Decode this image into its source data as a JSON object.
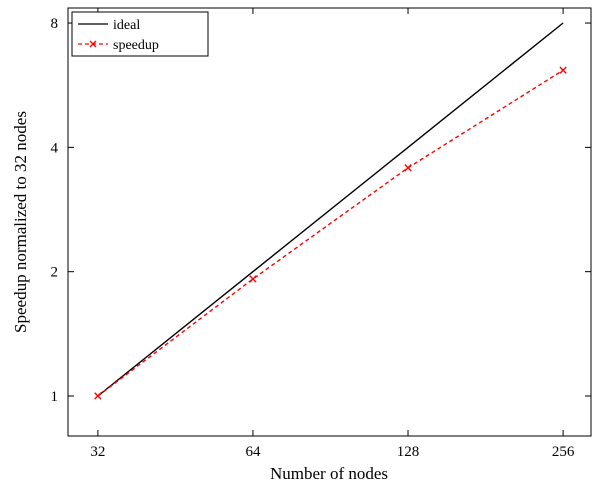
{
  "chart_data": {
    "type": "line",
    "title": "",
    "xlabel": "Number of nodes",
    "ylabel": "Speedup normalized to 32 nodes",
    "x_scale": "log2",
    "y_scale": "log2",
    "xlim": [
      28,
      290
    ],
    "ylim": [
      0.8,
      8.7
    ],
    "x_ticks": [
      32,
      64,
      128,
      256
    ],
    "x_tick_labels": [
      "32",
      "64",
      "128",
      "256"
    ],
    "y_ticks": [
      1,
      2,
      4,
      8
    ],
    "y_tick_labels": [
      "1",
      "2",
      "4",
      "8"
    ],
    "grid": false,
    "legend_position": "top-left",
    "series": [
      {
        "name": "ideal",
        "color": "#000000",
        "line_style": "solid",
        "marker": "none",
        "x": [
          32,
          64,
          128,
          256
        ],
        "y": [
          1,
          2,
          4,
          8
        ]
      },
      {
        "name": "speedup",
        "color": "#ff0000",
        "line_style": "dashed",
        "marker": "x",
        "x": [
          32,
          64,
          128,
          256
        ],
        "y": [
          1,
          1.92,
          3.57,
          6.15
        ]
      }
    ]
  }
}
